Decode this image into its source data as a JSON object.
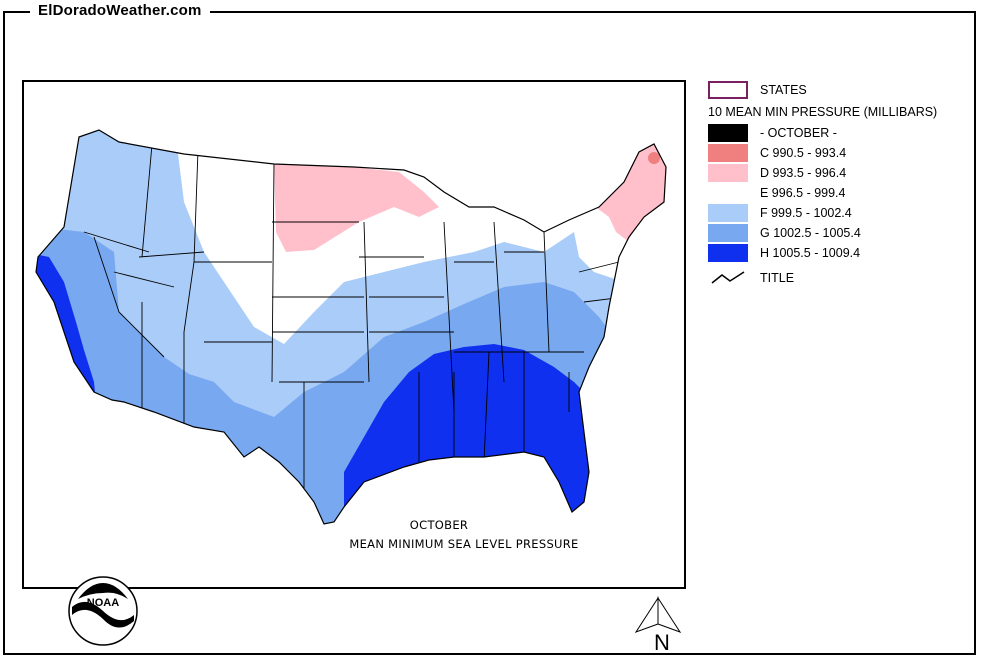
{
  "site": {
    "title": "ElDoradoWeather.com"
  },
  "map": {
    "caption_line1": "OCTOBER",
    "caption_line2": "MEAN MINIMUM SEA LEVEL PRESSURE",
    "logo_text": "NOAA",
    "north_label": "N"
  },
  "legend": {
    "states_label": "STATES",
    "heading": "10 MEAN MIN PRESSURE (MILLIBARS)",
    "items": [
      {
        "label": "- OCTOBER -",
        "color": "#000000"
      },
      {
        "label": "C 990.5 - 993.4",
        "color": "#f08080"
      },
      {
        "label": "D 993.5 - 996.4",
        "color": "#ffc0cb"
      },
      {
        "label": "E 996.5 - 999.4",
        "color": "#ffffff"
      },
      {
        "label": "F 999.5 - 1002.4",
        "color": "#aaccf8"
      },
      {
        "label": "G 1002.5 - 1005.4",
        "color": "#78a8f0"
      },
      {
        "label": "H 1005.5 - 1009.4",
        "color": "#1030f0"
      }
    ],
    "title_label": "TITLE"
  },
  "colors": {
    "states_outline": "#7a2060",
    "zone_c": "#f08080",
    "zone_d": "#ffc0cb",
    "zone_e": "#ffffff",
    "zone_f": "#aaccf8",
    "zone_g": "#78a8f0",
    "zone_h": "#1030f0"
  }
}
